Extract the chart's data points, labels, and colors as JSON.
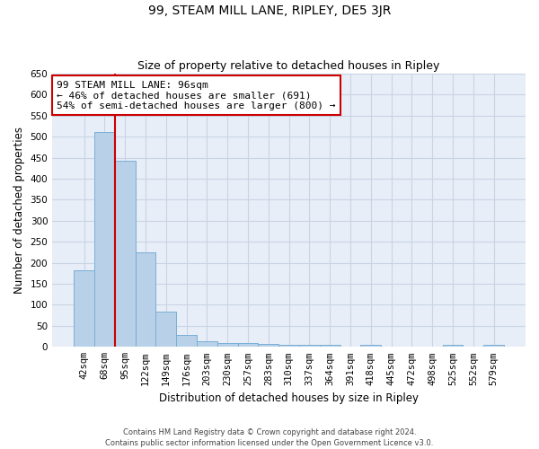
{
  "title": "99, STEAM MILL LANE, RIPLEY, DE5 3JR",
  "subtitle": "Size of property relative to detached houses in Ripley",
  "xlabel": "Distribution of detached houses by size in Ripley",
  "ylabel": "Number of detached properties",
  "bar_color": "#b8d0e8",
  "bar_edge_color": "#7aaed6",
  "grid_color": "#c8d4e4",
  "background_color": "#e8eef8",
  "categories": [
    "42sqm",
    "68sqm",
    "95sqm",
    "122sqm",
    "149sqm",
    "176sqm",
    "203sqm",
    "230sqm",
    "257sqm",
    "283sqm",
    "310sqm",
    "337sqm",
    "364sqm",
    "391sqm",
    "418sqm",
    "445sqm",
    "472sqm",
    "498sqm",
    "525sqm",
    "552sqm",
    "579sqm"
  ],
  "values": [
    183,
    511,
    443,
    226,
    85,
    28,
    14,
    9,
    9,
    6,
    5,
    5,
    5,
    0,
    5,
    0,
    0,
    0,
    5,
    0,
    5
  ],
  "ylim": [
    0,
    650
  ],
  "yticks": [
    0,
    50,
    100,
    150,
    200,
    250,
    300,
    350,
    400,
    450,
    500,
    550,
    600,
    650
  ],
  "vline_color": "#cc0000",
  "annotation_text": "99 STEAM MILL LANE: 96sqm\n← 46% of detached houses are smaller (691)\n54% of semi-detached houses are larger (800) →",
  "annotation_box_color": "#ffffff",
  "annotation_box_edge": "#cc0000",
  "footer": "Contains HM Land Registry data © Crown copyright and database right 2024.\nContains public sector information licensed under the Open Government Licence v3.0.",
  "title_fontsize": 10,
  "subtitle_fontsize": 9,
  "xlabel_fontsize": 8.5,
  "ylabel_fontsize": 8.5,
  "annot_fontsize": 8,
  "tick_fontsize": 7.5,
  "footer_fontsize": 6
}
